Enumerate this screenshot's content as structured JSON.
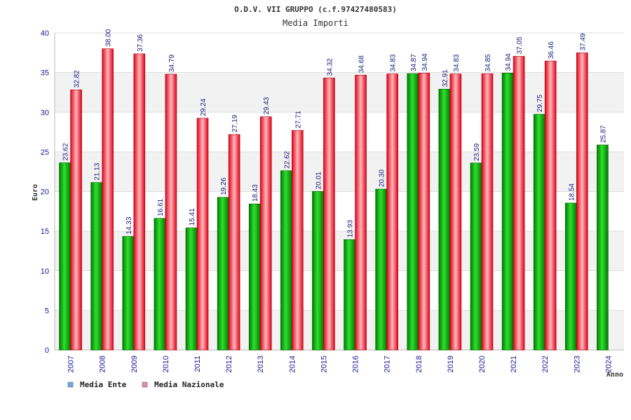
{
  "chart_data": {
    "type": "bar",
    "title": "O.D.V. VII GRUPPO (c.f.97427480583)",
    "subtitle": "Media Importi",
    "ylabel": "Euro",
    "xlabel": "Anno",
    "ylim": [
      0,
      40
    ],
    "yticks": [
      0,
      5,
      10,
      15,
      20,
      25,
      30,
      35,
      40
    ],
    "grid": true,
    "legend_position": "bottom-left",
    "categories": [
      "2007",
      "2008",
      "2009",
      "2010",
      "2011",
      "2012",
      "2013",
      "2014",
      "2015",
      "2016",
      "2017",
      "2018",
      "2019",
      "2020",
      "2021",
      "2022",
      "2023",
      "2024"
    ],
    "series": [
      {
        "name": "Media Ente",
        "color": "#00b000",
        "legend_color": "#6aaae8",
        "values": [
          23.62,
          21.13,
          14.33,
          16.61,
          15.41,
          19.26,
          18.43,
          22.62,
          20.01,
          13.93,
          20.3,
          34.87,
          32.91,
          23.59,
          34.94,
          29.75,
          18.54,
          25.87
        ],
        "labels": [
          "23.62",
          "21.13",
          "14.33",
          "16.61",
          "15.41",
          "19.26",
          "18.43",
          "22.62",
          "20.01",
          "13.93",
          "20.30",
          "34.87",
          "32.91",
          "23.59",
          "34.94",
          "29.75",
          "18.54",
          "25.87"
        ]
      },
      {
        "name": "Media Nazionale",
        "color": "#e82030",
        "legend_color": "#e48ab8",
        "values": [
          32.82,
          38.0,
          37.36,
          34.79,
          29.24,
          27.19,
          29.43,
          27.71,
          34.32,
          34.68,
          34.83,
          34.94,
          34.83,
          34.85,
          37.05,
          36.46,
          37.49,
          null
        ],
        "labels": [
          "32.82",
          "38.00",
          "37.36",
          "34.79",
          "29.24",
          "27.19",
          "29.43",
          "27.71",
          "34.32",
          "34.68",
          "34.83",
          "34.94",
          "34.83",
          "34.85",
          "37.05",
          "36.46",
          "37.49",
          null
        ]
      }
    ]
  }
}
